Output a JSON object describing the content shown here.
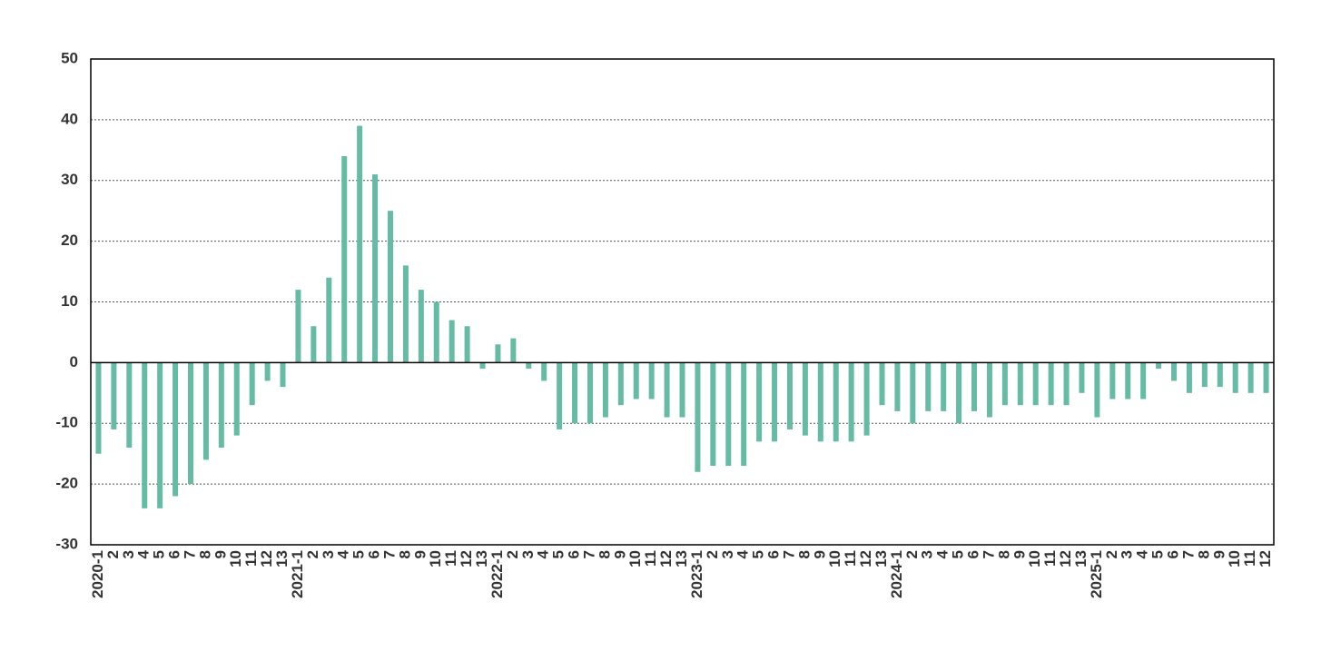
{
  "chart_data": {
    "type": "bar",
    "categories": [
      "2020-1",
      "2",
      "3",
      "4",
      "5",
      "6",
      "7",
      "8",
      "9",
      "10",
      "11",
      "12",
      "13",
      "2021-1",
      "2",
      "3",
      "4",
      "5",
      "6",
      "7",
      "8",
      "9",
      "10",
      "11",
      "12",
      "13",
      "2022-1",
      "2",
      "3",
      "4",
      "5",
      "6",
      "7",
      "8",
      "9",
      "10",
      "11",
      "12",
      "13",
      "2023-1",
      "2",
      "3",
      "4",
      "5",
      "6",
      "7",
      "8",
      "9",
      "10",
      "11",
      "12",
      "13",
      "2024-1",
      "2",
      "3",
      "4",
      "5",
      "6",
      "7",
      "8",
      "9",
      "10",
      "11",
      "12",
      "13",
      "2025-1",
      "2",
      "3",
      "4",
      "5",
      "6",
      "7",
      "8",
      "9",
      "10",
      "11",
      "12"
    ],
    "values": [
      -15,
      -11,
      -14,
      -24,
      -24,
      -22,
      -20,
      -16,
      -14,
      -12,
      -7,
      -3,
      -4,
      12,
      6,
      14,
      34,
      39,
      31,
      25,
      16,
      12,
      10,
      7,
      6,
      -1,
      3,
      4,
      -1,
      -3,
      -11,
      -10,
      -10,
      -9,
      -7,
      -6,
      -6,
      -9,
      -9,
      -18,
      -17,
      -17,
      -17,
      -13,
      -13,
      -11,
      -12,
      -13,
      -13,
      -13,
      -12,
      -7,
      -8,
      -10,
      -8,
      -8,
      -10,
      -8,
      -9,
      -7,
      -7,
      -7,
      -7,
      -7,
      -5,
      -9,
      -6,
      -6,
      -6,
      -1,
      -3,
      -5,
      -4,
      -4,
      -5,
      -5,
      -5
    ],
    "color": "#66bba5",
    "ylim": [
      -30,
      50
    ],
    "yticks": [
      -30,
      -20,
      -10,
      0,
      10,
      20,
      30,
      40,
      50
    ],
    "grid": true
  }
}
